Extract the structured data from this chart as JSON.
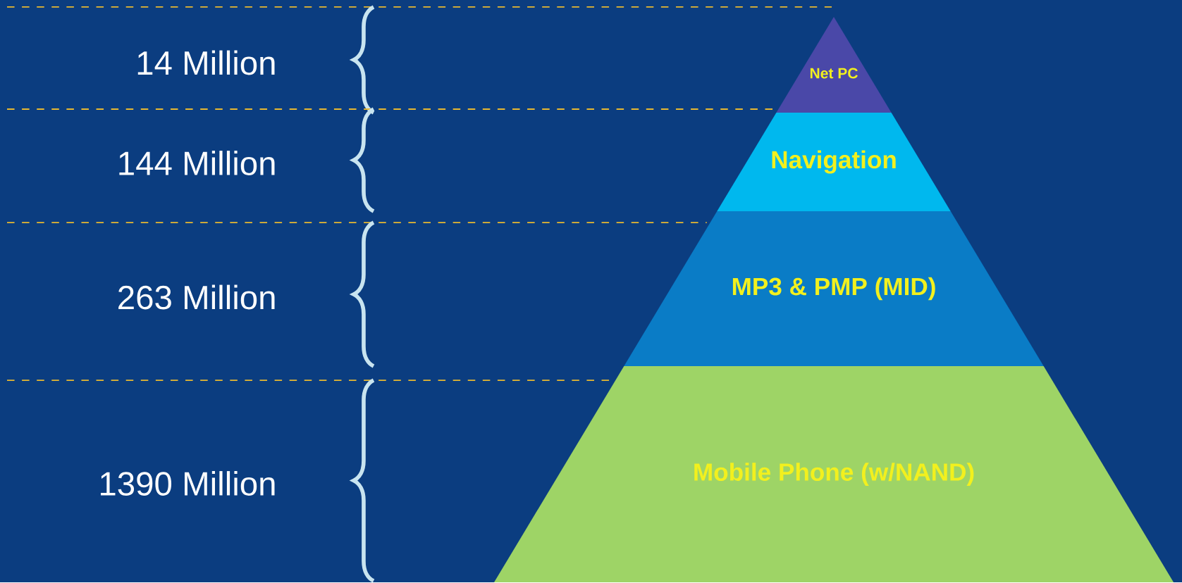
{
  "chart_data": {
    "type": "other",
    "categories": [
      "Net PC",
      "Navigation",
      "MP3 & PMP (MID)",
      "Mobile Phone (w/NAND)"
    ],
    "values": [
      14,
      144,
      263,
      1390
    ],
    "ylabel": "Million",
    "data_labels": true,
    "colors": [
      "#4a48a8",
      "#00b8ee",
      "#0a7cc6",
      "#9ed466"
    ]
  }
}
